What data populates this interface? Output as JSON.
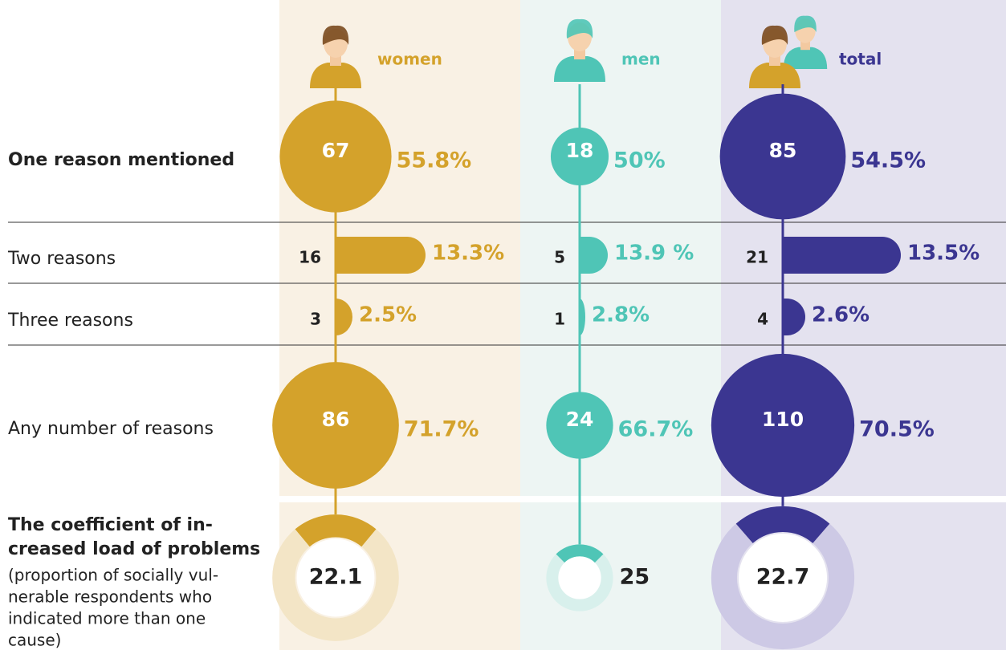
{
  "row_labels": [
    "One reason mentioned",
    "Two reasons",
    "Three reasons",
    "Any number of reasons"
  ],
  "coefficient_label": {
    "title_lines": [
      "The coefficient of in-",
      "creased load of problems"
    ],
    "note_lines": [
      "(proportion of socially vul-",
      "nerable respondents who",
      "indicated more than one",
      "cause)"
    ]
  },
  "columns": [
    {
      "name": "women",
      "color": "#d4a22b",
      "light": "#f3e5c6",
      "background": "#f9f1e4",
      "counts": [
        67,
        16,
        3,
        86
      ],
      "percent_labels": [
        "55.8%",
        "13.3%",
        "2.5%",
        "71.7%"
      ],
      "coefficient": 22.1
    },
    {
      "name": "men",
      "color": "#4fc5b6",
      "light": "#d8f0ec",
      "background": "#edf5f3",
      "counts": [
        18,
        5,
        1,
        24
      ],
      "percent_labels": [
        "50%",
        "13.9 %",
        "2.8%",
        "66.7%"
      ],
      "coefficient": 25
    },
    {
      "name": "total",
      "color": "#3b3691",
      "light": "#cdc9e5",
      "background": "#e4e2ef",
      "counts": [
        85,
        21,
        4,
        110
      ],
      "percent_labels": [
        "54.5%",
        "13.5%",
        "2.6%",
        "70.5%"
      ],
      "coefficient": 22.7
    }
  ]
}
